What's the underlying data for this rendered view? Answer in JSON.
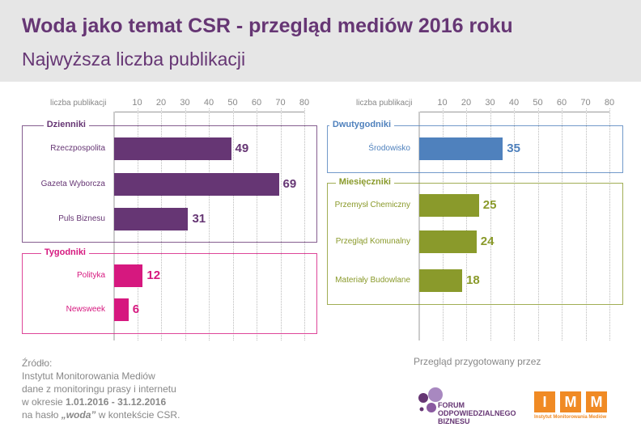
{
  "title": "Woda jako temat CSR - przegląd mediów 2016 roku",
  "subtitle": "Najwyższa liczba publikacji",
  "chart_data": [
    {
      "type": "bar",
      "orientation": "horizontal",
      "xlabel": "liczba publikacji",
      "xlim": [
        0,
        80
      ],
      "ticks": [
        10,
        20,
        30,
        40,
        50,
        60,
        70,
        80
      ],
      "grid": true,
      "groups": [
        {
          "name": "Dzienniki",
          "color": "#663674",
          "categories": [
            "Rzeczpospolita",
            "Gazeta Wyborcza",
            "Puls Biznesu"
          ],
          "values": [
            49,
            69,
            31
          ]
        },
        {
          "name": "Tygodniki",
          "color": "#d6187f",
          "categories": [
            "Polityka",
            "Newsweek"
          ],
          "values": [
            12,
            6
          ]
        }
      ]
    },
    {
      "type": "bar",
      "orientation": "horizontal",
      "xlabel": "liczba publikacji",
      "xlim": [
        0,
        80
      ],
      "ticks": [
        10,
        20,
        30,
        40,
        50,
        60,
        70,
        80
      ],
      "grid": true,
      "groups": [
        {
          "name": "Dwutygodniki",
          "color": "#4f81bd",
          "categories": [
            "Środowisko"
          ],
          "values": [
            35
          ]
        },
        {
          "name": "Miesięczniki",
          "color": "#8a9a2b",
          "categories": [
            "Przemysł Chemiczny",
            "Przegląd Komunalny",
            "Materiały Budowlane"
          ],
          "values": [
            25,
            24,
            18
          ]
        }
      ]
    }
  ],
  "footer": {
    "source_label": "Źródło:",
    "line1": "Instytut Monitorowania Mediów",
    "line2": "dane z monitoringu prasy i internetu",
    "line3_prefix": "w okresie ",
    "period": "1.01.2016 - 31.12.2016",
    "line4_prefix": "na hasło ",
    "keyword": "„woda”",
    "line4_suffix": " w kontekście CSR.",
    "prepared_by": "Przegląd przygotowany przez"
  },
  "logos": {
    "fob": [
      "FORUM",
      "ODPOWIEDZIALNEGO",
      "BIZNESU"
    ],
    "imm_letters": [
      "I",
      "M",
      "M"
    ],
    "imm_name": "Instytut Monitorowania Mediów"
  }
}
